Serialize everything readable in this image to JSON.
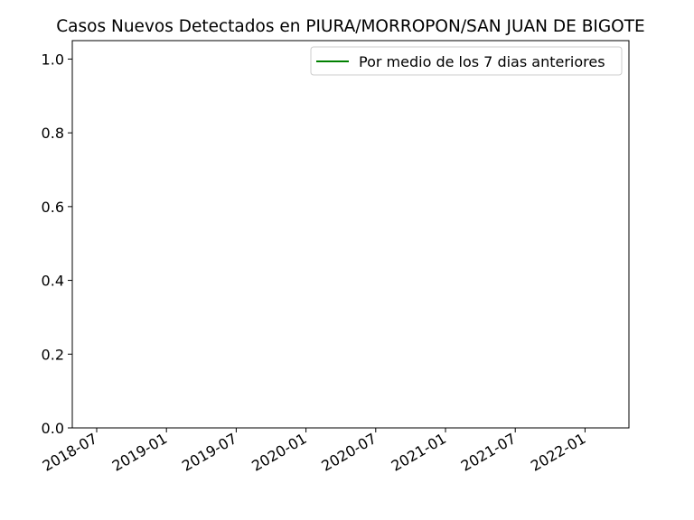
{
  "chart_data": {
    "type": "line",
    "title": "Casos Nuevos Detectados en PIURA/MORROPON/SAN JUAN DE BIGOTE",
    "xlabel": "",
    "ylabel": "",
    "x_ticks": [
      "2018-07",
      "2019-01",
      "2019-07",
      "2020-01",
      "2020-07",
      "2021-01",
      "2021-07",
      "2022-01"
    ],
    "y_ticks": [
      "0.0",
      "0.2",
      "0.4",
      "0.6",
      "0.8",
      "1.0"
    ],
    "ylim": [
      0,
      1.05
    ],
    "grid": false,
    "legend_position": "top-right",
    "series": [
      {
        "name": "Por medio de los 7 dias anteriores",
        "color": "#008000",
        "x": [],
        "values": []
      }
    ]
  }
}
